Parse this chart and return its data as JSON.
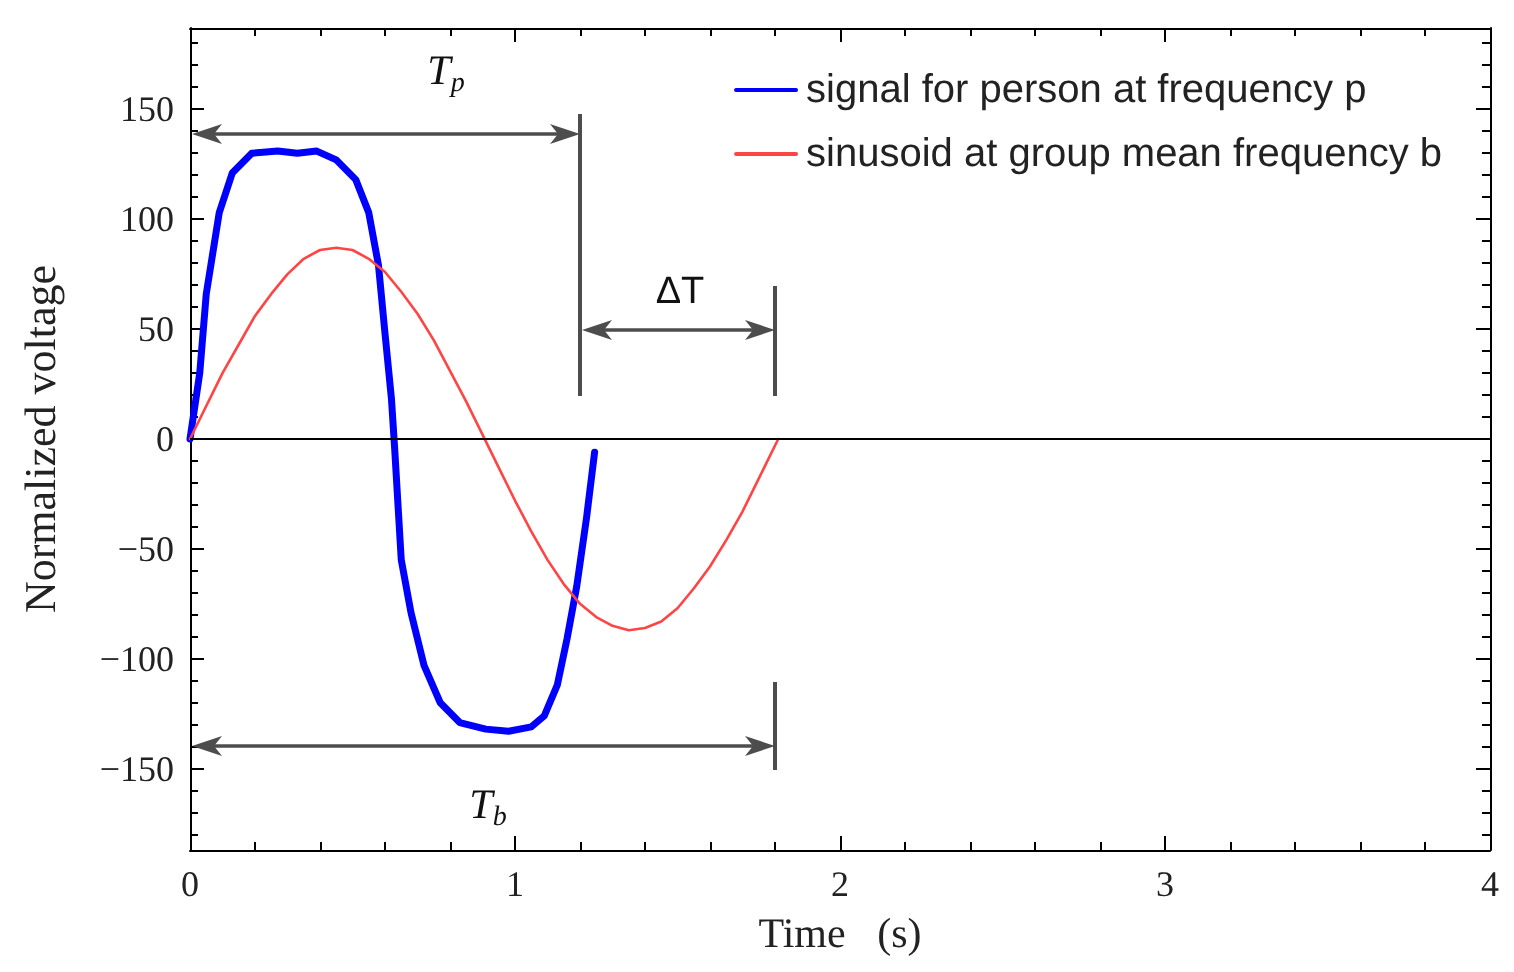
{
  "chart_data": {
    "type": "line",
    "xlabel": "Time   (s)",
    "ylabel": "Normalized voltage",
    "legend": "top right",
    "xlim": [
      0,
      4
    ],
    "ylim": [
      -187,
      187
    ],
    "xticks": [
      0,
      {
        "value": 0.2,
        "label": null
      },
      {
        "value": 0.4,
        "label": null
      },
      {
        "value": 0.6,
        "label": null
      },
      {
        "value": 0.8,
        "label": null
      },
      1,
      {
        "value": 1.2,
        "label": null
      },
      {
        "value": 1.4,
        "label": null
      },
      {
        "value": 1.6,
        "label": null
      },
      {
        "value": 1.8,
        "label": null
      },
      2,
      {
        "value": 2.2,
        "label": null
      },
      {
        "value": 2.4,
        "label": null
      },
      {
        "value": 2.6,
        "label": null
      },
      {
        "value": 2.8,
        "label": null
      },
      3,
      {
        "value": 3.2,
        "label": null
      },
      {
        "value": 3.4,
        "label": null
      },
      {
        "value": 3.6,
        "label": null
      },
      {
        "value": 3.8,
        "label": null
      },
      4
    ],
    "yticks": [
      {
        "value": -180,
        "label": null
      },
      {
        "value": -170,
        "label": null
      },
      {
        "value": -160,
        "label": null
      },
      -150,
      {
        "value": -140,
        "label": null
      },
      {
        "value": -130,
        "label": null
      },
      {
        "value": -120,
        "label": null
      },
      {
        "value": -110,
        "label": null
      },
      -100,
      {
        "value": -90,
        "label": null
      },
      {
        "value": -80,
        "label": null
      },
      {
        "value": -70,
        "label": null
      },
      {
        "value": -60,
        "label": null
      },
      -50,
      {
        "value": -40,
        "label": null
      },
      {
        "value": -30,
        "label": null
      },
      {
        "value": -20,
        "label": null
      },
      {
        "value": -10,
        "label": null
      },
      0,
      {
        "value": 10,
        "label": null
      },
      {
        "value": 20,
        "label": null
      },
      {
        "value": 30,
        "label": null
      },
      {
        "value": 40,
        "label": null
      },
      50,
      {
        "value": 60,
        "label": null
      },
      {
        "value": 70,
        "label": null
      },
      {
        "value": 80,
        "label": null
      },
      {
        "value": 90,
        "label": null
      },
      100,
      {
        "value": 110,
        "label": null
      },
      {
        "value": 120,
        "label": null
      },
      {
        "value": 130,
        "label": null
      },
      {
        "value": 140,
        "label": null
      },
      150,
      {
        "value": 160,
        "label": null
      },
      {
        "value": 170,
        "label": null
      },
      {
        "value": 180,
        "label": null
      }
    ],
    "series": [
      {
        "name": "signal for person at frequency p",
        "color": "#0000ff",
        "x": [
          0,
          0.03,
          0.05,
          0.09,
          0.13,
          0.19,
          0.27,
          0.33,
          0.39,
          0.45,
          0.51,
          0.55,
          0.58,
          0.6,
          0.62,
          0.63,
          0.64,
          0.65,
          0.68,
          0.72,
          0.77,
          0.83,
          0.91,
          0.98,
          1.05,
          1.09,
          1.13,
          1.16,
          1.19,
          1.22,
          1.245
        ],
        "values": [
          0,
          30,
          66,
          103,
          121,
          130,
          131,
          130,
          131,
          127,
          118,
          103,
          79,
          48,
          18,
          -5,
          -30,
          -55,
          -79,
          -103,
          -120,
          -129,
          -132,
          -133,
          -131,
          -126,
          -112,
          -91,
          -67,
          -36,
          -6
        ]
      },
      {
        "name": "sinusoid at group mean frequency b",
        "color": "#ff4444",
        "x": [
          0,
          0.05,
          0.1,
          0.15,
          0.2,
          0.25,
          0.3,
          0.35,
          0.4,
          0.45,
          0.5,
          0.55,
          0.6,
          0.65,
          0.7,
          0.75,
          0.8,
          0.85,
          0.9,
          0.95,
          1,
          1.05,
          1.1,
          1.15,
          1.2,
          1.25,
          1.3,
          1.35,
          1.4,
          1.45,
          1.5,
          1.55,
          1.6,
          1.65,
          1.7,
          1.75,
          1.81
        ],
        "values": [
          0,
          15,
          30,
          43,
          56,
          66,
          75,
          82,
          86,
          87,
          86,
          82,
          76,
          67,
          57,
          45,
          31,
          17,
          2,
          -13,
          -28,
          -42,
          -55,
          -66,
          -75,
          -81,
          -85,
          -87,
          -86,
          -83,
          -77,
          -68,
          -58,
          -46,
          -33,
          -18,
          0
        ]
      }
    ],
    "ref_lines": [
      {
        "axis": "y",
        "value": 0,
        "color": "#000000"
      }
    ],
    "annotations": [
      "T$_{p}$",
      "ΔT",
      "T$_{b}$"
    ]
  }
}
